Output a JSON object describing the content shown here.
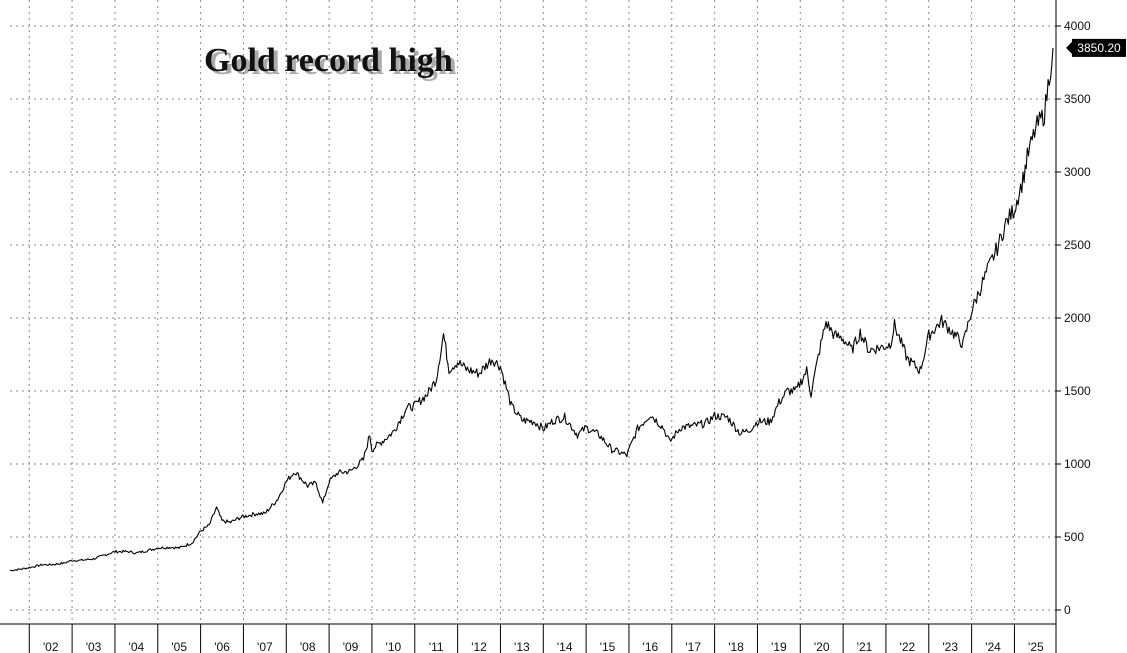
{
  "chart_data": {
    "type": "line",
    "title": "Gold record high",
    "xlabel": "",
    "ylabel": "",
    "ylim": [
      -10,
      4070
    ],
    "yticks": [
      0,
      500,
      1000,
      1500,
      2000,
      2500,
      3000,
      3500,
      4000
    ],
    "ytick_labels": [
      "0",
      "500",
      "1000",
      "1500",
      "2000",
      "2500",
      "3000",
      "3500",
      "4000"
    ],
    "xlim": [
      2001.55,
      2025.97
    ],
    "xtick_labels": [
      "'02",
      "'03",
      "'04",
      "'05",
      "'06",
      "'07",
      "'08",
      "'09",
      "'10",
      "'11",
      "'12",
      "'13",
      "'14",
      "'15",
      "'16",
      "'17",
      "'18",
      "'19",
      "'20",
      "'21",
      "'22",
      "'23",
      "'24",
      "'25"
    ],
    "grid": true,
    "axis_side": "right",
    "last_value_label": "3850.20",
    "series": [
      {
        "x": [
          2001.55,
          2001.8,
          2002.0,
          2002.3,
          2002.5,
          2002.8,
          2003.0,
          2003.2,
          2003.5,
          2003.8,
          2004.0,
          2004.3,
          2004.5,
          2004.8,
          2005.0,
          2005.3,
          2005.5,
          2005.8,
          2006.0,
          2006.2,
          2006.37,
          2006.5,
          2006.7,
          2006.9,
          2007.0,
          2007.3,
          2007.5,
          2007.8,
          2008.0,
          2008.2,
          2008.5,
          2008.7,
          2008.85,
          2009.0,
          2009.2,
          2009.5,
          2009.8,
          2009.95,
          2010.0,
          2010.3,
          2010.5,
          2010.8,
          2011.0,
          2011.3,
          2011.5,
          2011.67,
          2011.8,
          2012.0,
          2012.2,
          2012.5,
          2012.8,
          2013.0,
          2013.25,
          2013.5,
          2013.8,
          2014.0,
          2014.25,
          2014.5,
          2014.8,
          2015.0,
          2015.3,
          2015.6,
          2015.95,
          2016.2,
          2016.5,
          2016.8,
          2016.95,
          2017.2,
          2017.5,
          2017.8,
          2018.0,
          2018.3,
          2018.6,
          2018.8,
          2019.0,
          2019.3,
          2019.5,
          2019.7,
          2019.9,
          2020.15,
          2020.25,
          2020.45,
          2020.6,
          2020.8,
          2021.0,
          2021.2,
          2021.4,
          2021.6,
          2021.9,
          2022.1,
          2022.2,
          2022.5,
          2022.8,
          2023.0,
          2023.3,
          2023.5,
          2023.8,
          2024.0,
          2024.2,
          2024.4,
          2024.6,
          2024.8,
          2025.0,
          2025.2,
          2025.3,
          2025.5,
          2025.7,
          2025.9
        ],
        "values": [
          270,
          280,
          290,
          310,
          310,
          320,
          340,
          340,
          350,
          380,
          400,
          400,
          390,
          410,
          425,
          430,
          425,
          460,
          540,
          580,
          700,
          610,
          600,
          630,
          640,
          660,
          660,
          760,
          880,
          950,
          850,
          870,
          730,
          880,
          940,
          950,
          1030,
          1200,
          1100,
          1170,
          1220,
          1380,
          1400,
          1480,
          1580,
          1890,
          1650,
          1700,
          1650,
          1620,
          1720,
          1670,
          1400,
          1300,
          1290,
          1240,
          1300,
          1320,
          1200,
          1250,
          1200,
          1100,
          1060,
          1240,
          1340,
          1250,
          1150,
          1250,
          1260,
          1280,
          1330,
          1320,
          1210,
          1230,
          1290,
          1290,
          1420,
          1500,
          1500,
          1640,
          1480,
          1780,
          1970,
          1880,
          1860,
          1780,
          1900,
          1780,
          1800,
          1820,
          1950,
          1720,
          1640,
          1880,
          1980,
          1920,
          1820,
          2050,
          2200,
          2350,
          2480,
          2650,
          2750,
          2950,
          3100,
          3300,
          3400,
          3850.2
        ]
      }
    ]
  }
}
